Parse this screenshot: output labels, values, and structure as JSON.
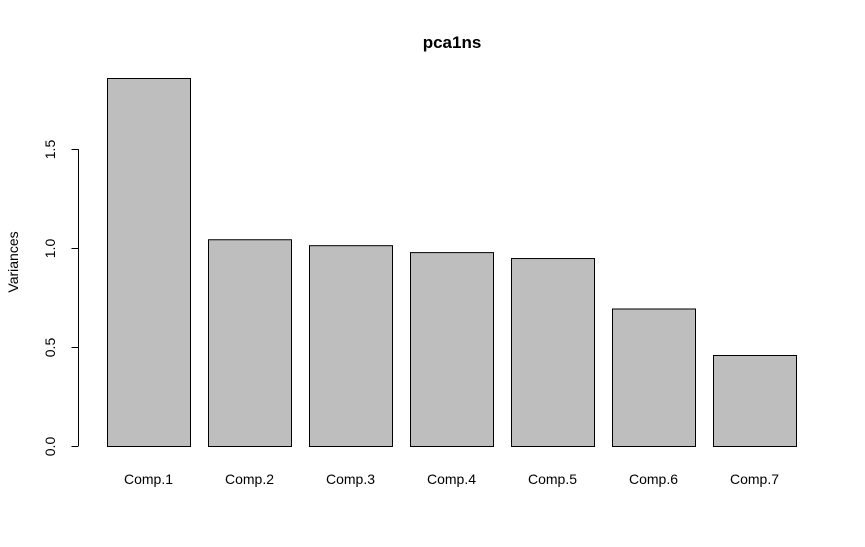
{
  "chart_data": {
    "type": "bar",
    "title": "pca1ns",
    "xlabel": "",
    "ylabel": "Variances",
    "categories": [
      "Comp.1",
      "Comp.2",
      "Comp.3",
      "Comp.4",
      "Comp.5",
      "Comp.6",
      "Comp.7"
    ],
    "values": [
      1.86,
      1.045,
      1.015,
      0.98,
      0.95,
      0.695,
      0.46
    ],
    "ylim": [
      0,
      1.86
    ],
    "yticks": [
      0.0,
      0.5,
      1.0,
      1.5
    ],
    "ytick_labels": [
      "0.0",
      "0.5",
      "1.0",
      "1.5"
    ],
    "bar_fill": "#bebebe",
    "bar_stroke": "#000000",
    "grid": false,
    "legend": "none"
  }
}
